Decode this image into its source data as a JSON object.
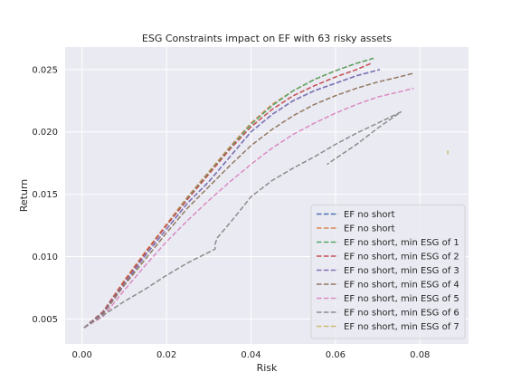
{
  "chart_data": {
    "type": "line",
    "title": "ESG Constraints impact on EF with 63 risky assets",
    "xlabel": "Risk",
    "ylabel": "Return",
    "xlim": [
      -0.004,
      0.0915
    ],
    "ylim": [
      0.003,
      0.0268
    ],
    "xticks": [
      0.0,
      0.02,
      0.04,
      0.06,
      0.08
    ],
    "xtick_labels": [
      "0.00",
      "0.02",
      "0.04",
      "0.06",
      "0.08"
    ],
    "yticks": [
      0.005,
      0.01,
      0.015,
      0.02,
      0.025
    ],
    "ytick_labels": [
      "0.005",
      "0.010",
      "0.015",
      "0.020",
      "0.025"
    ],
    "grid": true,
    "legend_position": "lower right",
    "series": [
      {
        "name": "EF no short",
        "color": "#4c72b0",
        "dash": "dashed",
        "x": [
          0.0005,
          0.005,
          0.01,
          0.015,
          0.02,
          0.025,
          0.03,
          0.035,
          0.04,
          0.045,
          0.05,
          0.055,
          0.06,
          0.065,
          0.0705
        ],
        "y": [
          0.0043,
          0.0055,
          0.0078,
          0.0101,
          0.0122,
          0.0143,
          0.016,
          0.018,
          0.02,
          0.0214,
          0.0225,
          0.0233,
          0.0239,
          0.0245,
          0.025
        ]
      },
      {
        "name": "EF no short",
        "color": "#dd8452",
        "dash": "dashed",
        "x": [
          0.0005,
          0.005,
          0.01,
          0.015,
          0.02,
          0.025,
          0.03,
          0.035,
          0.04,
          0.045,
          0.05,
          0.055,
          0.06,
          0.065,
          0.069
        ],
        "y": [
          0.0043,
          0.0056,
          0.0081,
          0.0104,
          0.0126,
          0.0148,
          0.0168,
          0.0188,
          0.0207,
          0.0222,
          0.0233,
          0.0242,
          0.0249,
          0.0255,
          0.0259
        ]
      },
      {
        "name": "EF no short, min ESG of 1",
        "color": "#55a868",
        "dash": "dashed",
        "x": [
          0.0005,
          0.005,
          0.01,
          0.015,
          0.02,
          0.025,
          0.03,
          0.035,
          0.04,
          0.045,
          0.05,
          0.055,
          0.06,
          0.065,
          0.069
        ],
        "y": [
          0.0043,
          0.0056,
          0.008,
          0.0103,
          0.0125,
          0.0147,
          0.0167,
          0.0187,
          0.0206,
          0.0221,
          0.0233,
          0.0242,
          0.0249,
          0.0255,
          0.0259
        ]
      },
      {
        "name": "EF no short, min ESG of 2",
        "color": "#c44e52",
        "dash": "dashed",
        "x": [
          0.0005,
          0.005,
          0.01,
          0.015,
          0.02,
          0.025,
          0.03,
          0.035,
          0.04,
          0.045,
          0.05,
          0.055,
          0.06,
          0.065,
          0.0685
        ],
        "y": [
          0.0043,
          0.0056,
          0.008,
          0.0103,
          0.0125,
          0.0146,
          0.0166,
          0.0186,
          0.0204,
          0.0218,
          0.0229,
          0.0237,
          0.0244,
          0.025,
          0.0255
        ]
      },
      {
        "name": "EF no short, min ESG of 3",
        "color": "#8172b3",
        "dash": "dashed",
        "x": [
          0.0005,
          0.005,
          0.01,
          0.015,
          0.02,
          0.025,
          0.03,
          0.035,
          0.04,
          0.045,
          0.05,
          0.055,
          0.06,
          0.065,
          0.0705
        ],
        "y": [
          0.0043,
          0.0055,
          0.0078,
          0.0101,
          0.0122,
          0.0143,
          0.016,
          0.018,
          0.02,
          0.0214,
          0.0225,
          0.0233,
          0.0239,
          0.0245,
          0.025
        ]
      },
      {
        "name": "EF no short, min ESG of 4",
        "color": "#937860",
        "dash": "dashed",
        "x": [
          0.0005,
          0.005,
          0.01,
          0.015,
          0.02,
          0.025,
          0.03,
          0.035,
          0.04,
          0.045,
          0.05,
          0.055,
          0.06,
          0.065,
          0.07,
          0.075,
          0.0785
        ],
        "y": [
          0.0043,
          0.0054,
          0.0077,
          0.0098,
          0.0119,
          0.0139,
          0.0156,
          0.0173,
          0.0189,
          0.0202,
          0.0213,
          0.0222,
          0.0229,
          0.0235,
          0.024,
          0.0244,
          0.0247
        ]
      },
      {
        "name": "EF no short, min ESG of 5",
        "color": "#da8bc3",
        "dash": "dashed",
        "x": [
          0.0005,
          0.005,
          0.01,
          0.015,
          0.02,
          0.025,
          0.03,
          0.035,
          0.04,
          0.045,
          0.05,
          0.055,
          0.06,
          0.065,
          0.07,
          0.075,
          0.0785
        ],
        "y": [
          0.0043,
          0.0052,
          0.0073,
          0.0093,
          0.0112,
          0.0129,
          0.0145,
          0.016,
          0.0174,
          0.0187,
          0.0198,
          0.0207,
          0.0215,
          0.0222,
          0.0228,
          0.0232,
          0.0235
        ]
      },
      {
        "name": "EF no short, min ESG of 6",
        "color": "#8c8c8c",
        "dash": "dashed",
        "x": [
          0.0005,
          0.005,
          0.01,
          0.015,
          0.02,
          0.025,
          0.0315,
          0.0315,
          0.032,
          0.036,
          0.04,
          0.045,
          0.05,
          0.055,
          0.06,
          0.065,
          0.07,
          0.0755,
          0.07,
          0.065,
          0.058
        ],
        "y": [
          0.0043,
          0.0053,
          0.0064,
          0.0074,
          0.0085,
          0.0095,
          0.0106,
          0.011,
          0.0115,
          0.0131,
          0.0148,
          0.0161,
          0.0171,
          0.018,
          0.019,
          0.0199,
          0.0207,
          0.0216,
          0.0203,
          0.019,
          0.0174
        ]
      },
      {
        "name": "EF no short, min ESG of 7",
        "color": "#ccb974",
        "dash": "dashed",
        "x": [
          0.0866,
          0.0866
        ],
        "y": [
          0.0182,
          0.0185
        ]
      }
    ]
  }
}
